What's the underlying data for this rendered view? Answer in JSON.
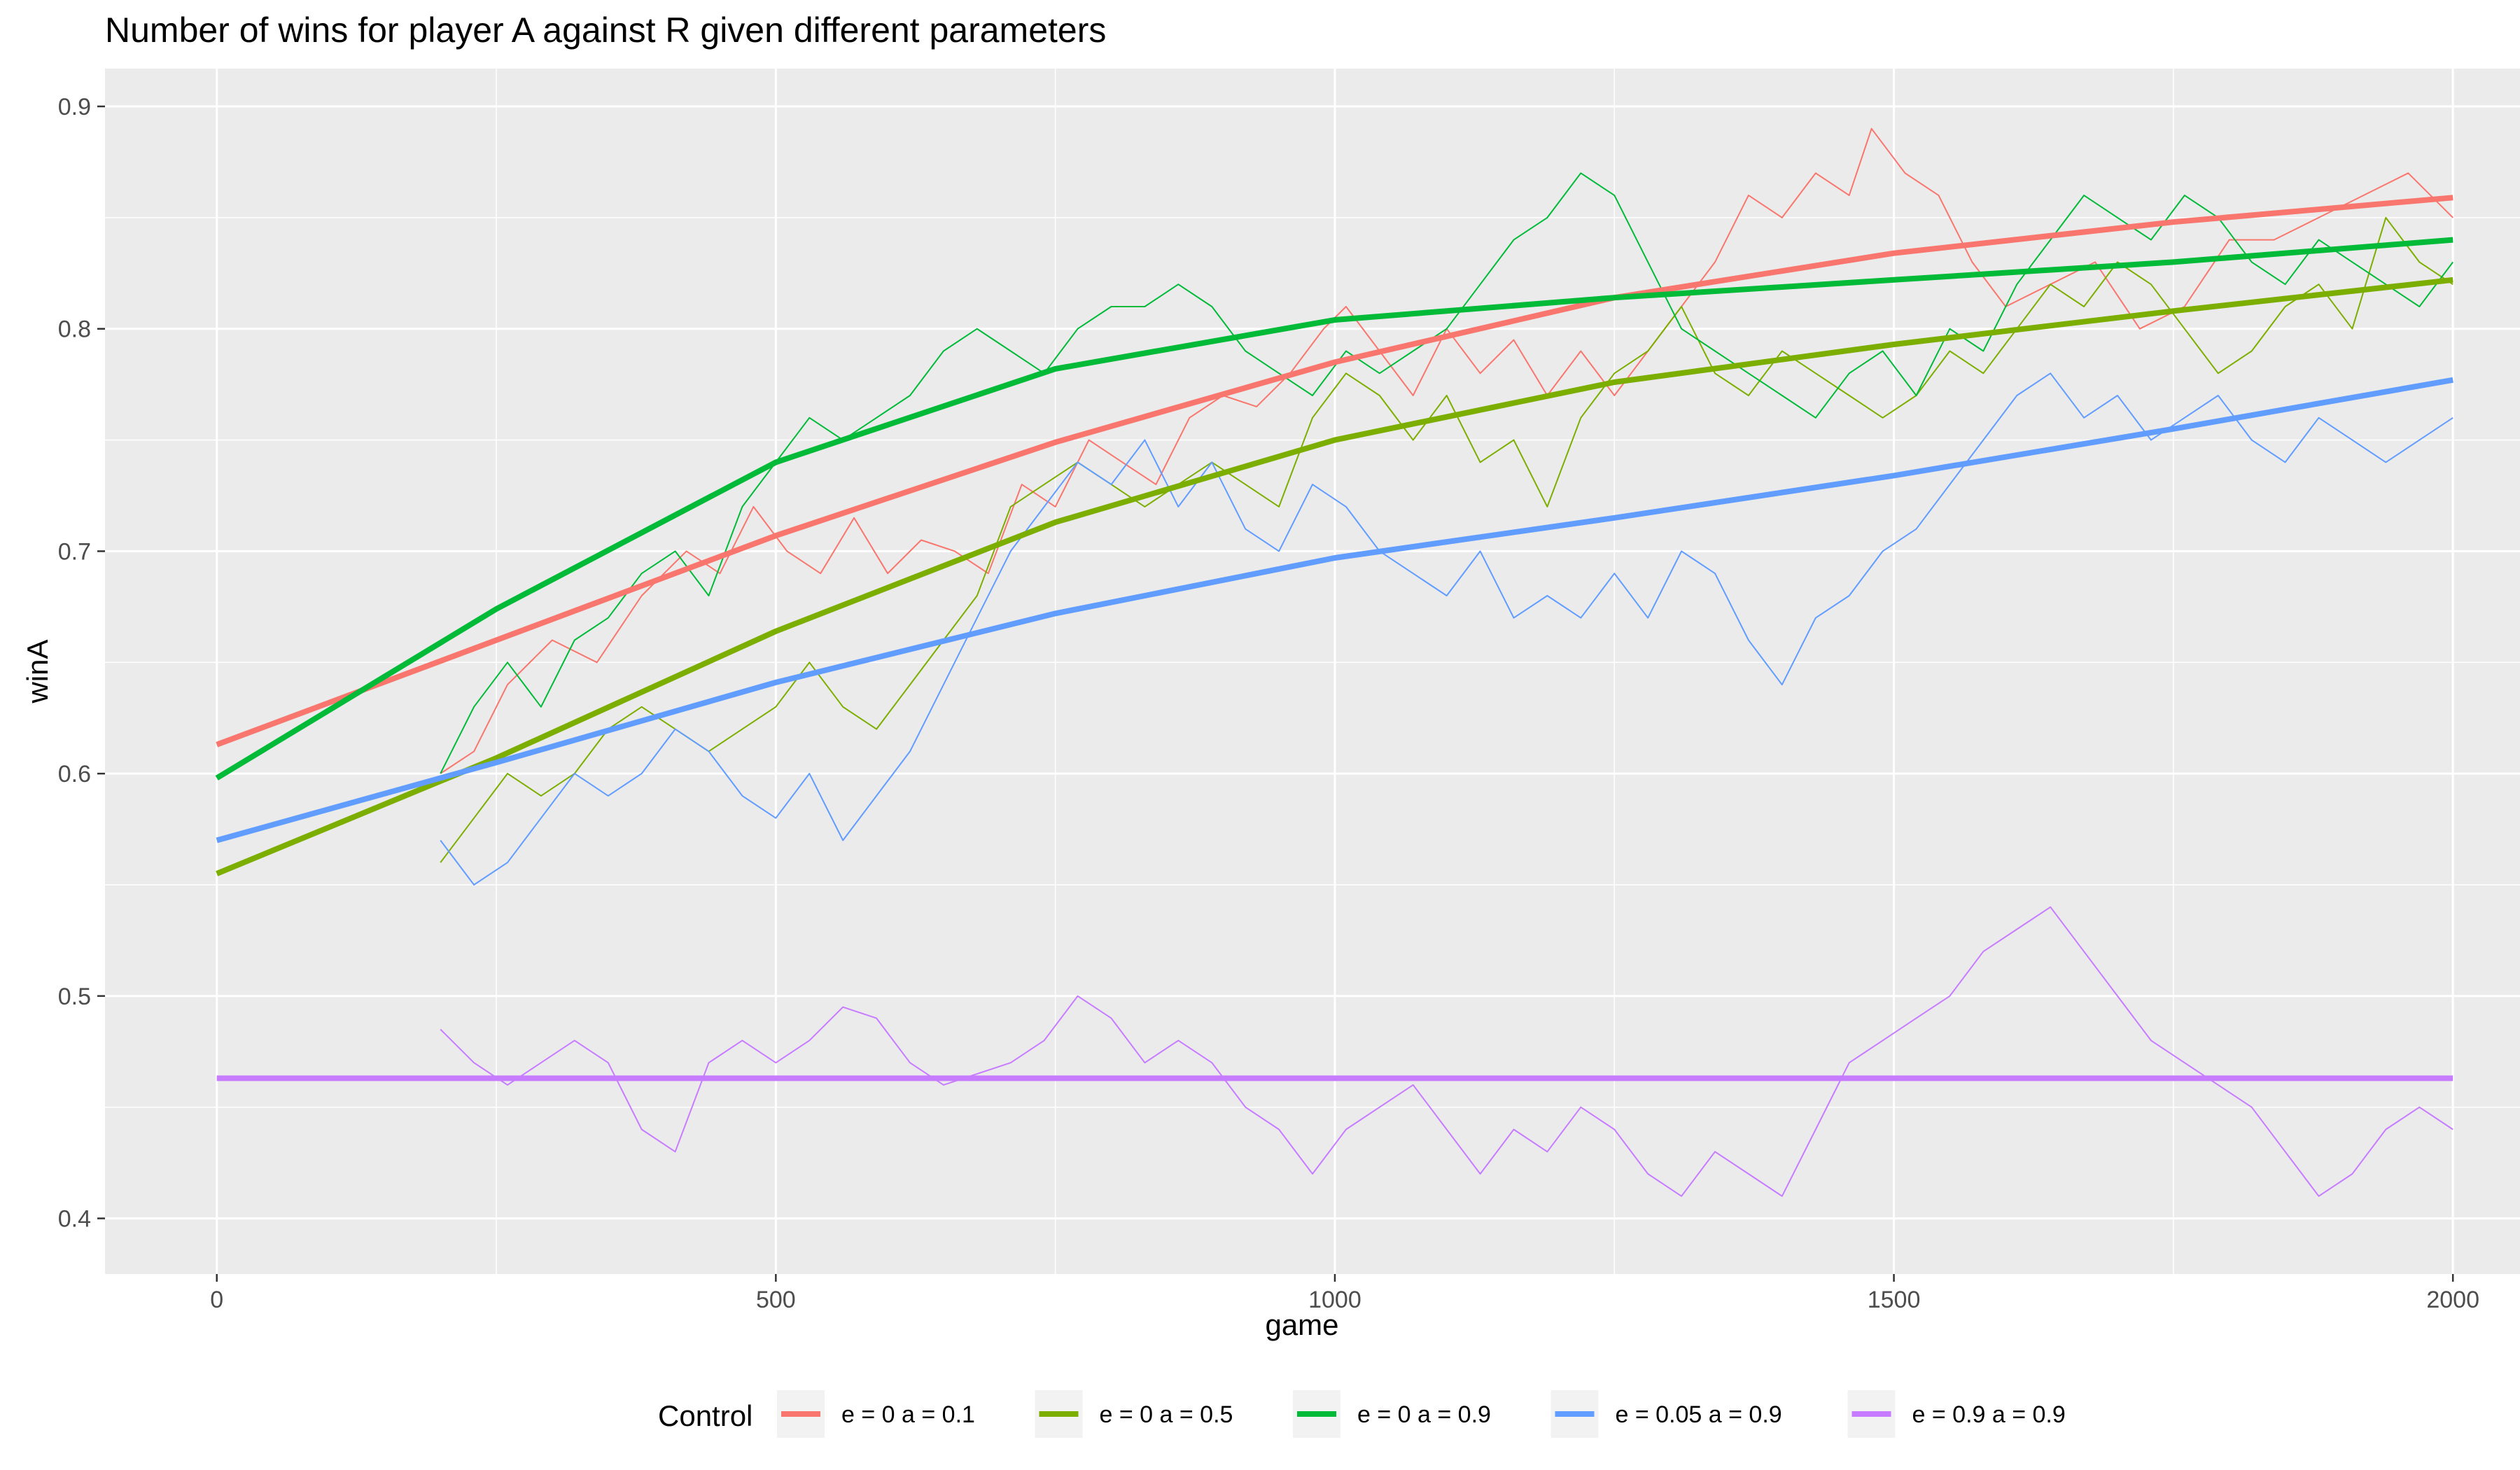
{
  "chart_data": {
    "type": "line",
    "title": "Number of wins for player A against R given different parameters",
    "xlabel": "game",
    "ylabel": "winA",
    "xlim": [
      -100,
      2060
    ],
    "ylim": [
      0.375,
      0.917
    ],
    "xticks": [
      0,
      500,
      1000,
      1500,
      2000
    ],
    "yticks": [
      0.4,
      0.5,
      0.6,
      0.7,
      0.8,
      0.9
    ],
    "xtick_labels": [
      "0",
      "500",
      "1000",
      "1500",
      "2000"
    ],
    "ytick_labels": [
      "0.4",
      "0.5",
      "0.6",
      "0.7",
      "0.8",
      "0.9"
    ],
    "grid": true,
    "legend": {
      "title": "Control",
      "position": "bottom"
    },
    "series": [
      {
        "name": "e = 0 a = 0.1",
        "color": "#F8766D",
        "smooth": {
          "x": [
            0,
            250,
            500,
            750,
            1000,
            1250,
            1500,
            1750,
            2000
          ],
          "y": [
            0.613,
            0.66,
            0.707,
            0.749,
            0.785,
            0.814,
            0.834,
            0.848,
            0.859
          ]
        },
        "raw": {
          "x": [
            200,
            230,
            260,
            300,
            340,
            380,
            420,
            450,
            480,
            510,
            540,
            570,
            600,
            630,
            660,
            690,
            720,
            750,
            780,
            810,
            840,
            870,
            900,
            930,
            960,
            990,
            1010,
            1040,
            1070,
            1100,
            1130,
            1160,
            1190,
            1220,
            1250,
            1280,
            1310,
            1340,
            1370,
            1400,
            1430,
            1460,
            1480,
            1510,
            1540,
            1570,
            1600,
            1640,
            1680,
            1720,
            1760,
            1800,
            1840,
            1880,
            1920,
            1960,
            2000
          ],
          "y": [
            0.6,
            0.61,
            0.64,
            0.66,
            0.65,
            0.68,
            0.7,
            0.69,
            0.72,
            0.7,
            0.69,
            0.715,
            0.69,
            0.705,
            0.7,
            0.69,
            0.73,
            0.72,
            0.75,
            0.74,
            0.73,
            0.76,
            0.77,
            0.765,
            0.78,
            0.8,
            0.81,
            0.79,
            0.77,
            0.8,
            0.78,
            0.795,
            0.77,
            0.79,
            0.77,
            0.79,
            0.81,
            0.83,
            0.86,
            0.85,
            0.87,
            0.86,
            0.89,
            0.87,
            0.86,
            0.83,
            0.81,
            0.82,
            0.83,
            0.8,
            0.81,
            0.84,
            0.84,
            0.85,
            0.86,
            0.87,
            0.85
          ]
        }
      },
      {
        "name": "e = 0 a = 0.5",
        "color": "#7CAE00",
        "smooth": {
          "x": [
            0,
            250,
            500,
            750,
            1000,
            1250,
            1500,
            1750,
            2000
          ],
          "y": [
            0.555,
            0.607,
            0.664,
            0.713,
            0.75,
            0.776,
            0.793,
            0.808,
            0.822
          ]
        },
        "raw": {
          "x": [
            200,
            230,
            260,
            290,
            320,
            350,
            380,
            410,
            440,
            470,
            500,
            530,
            560,
            590,
            620,
            650,
            680,
            710,
            740,
            770,
            800,
            830,
            860,
            890,
            920,
            950,
            980,
            1010,
            1040,
            1070,
            1100,
            1130,
            1160,
            1190,
            1220,
            1250,
            1280,
            1310,
            1340,
            1370,
            1400,
            1430,
            1460,
            1490,
            1520,
            1550,
            1580,
            1610,
            1640,
            1670,
            1700,
            1730,
            1760,
            1790,
            1820,
            1850,
            1880,
            1910,
            1940,
            1970,
            2000
          ],
          "y": [
            0.56,
            0.58,
            0.6,
            0.59,
            0.6,
            0.62,
            0.63,
            0.62,
            0.61,
            0.62,
            0.63,
            0.65,
            0.63,
            0.62,
            0.64,
            0.66,
            0.68,
            0.72,
            0.73,
            0.74,
            0.73,
            0.72,
            0.73,
            0.74,
            0.73,
            0.72,
            0.76,
            0.78,
            0.77,
            0.75,
            0.77,
            0.74,
            0.75,
            0.72,
            0.76,
            0.78,
            0.79,
            0.81,
            0.78,
            0.77,
            0.79,
            0.78,
            0.77,
            0.76,
            0.77,
            0.79,
            0.78,
            0.8,
            0.82,
            0.81,
            0.83,
            0.82,
            0.8,
            0.78,
            0.79,
            0.81,
            0.82,
            0.8,
            0.85,
            0.83,
            0.82
          ]
        }
      },
      {
        "name": "e = 0 a = 0.9",
        "color": "#00BA38",
        "smooth": {
          "x": [
            0,
            250,
            500,
            750,
            1000,
            1250,
            1500,
            1750,
            2000
          ],
          "y": [
            0.598,
            0.674,
            0.74,
            0.782,
            0.804,
            0.814,
            0.822,
            0.83,
            0.84
          ]
        },
        "raw": {
          "x": [
            200,
            230,
            260,
            290,
            320,
            350,
            380,
            410,
            440,
            470,
            500,
            530,
            560,
            590,
            620,
            650,
            680,
            710,
            740,
            770,
            800,
            830,
            860,
            890,
            920,
            950,
            980,
            1010,
            1040,
            1070,
            1100,
            1130,
            1160,
            1190,
            1220,
            1250,
            1280,
            1310,
            1340,
            1370,
            1400,
            1430,
            1460,
            1490,
            1520,
            1550,
            1580,
            1610,
            1640,
            1670,
            1700,
            1730,
            1760,
            1790,
            1820,
            1850,
            1880,
            1910,
            1940,
            1970,
            2000
          ],
          "y": [
            0.6,
            0.63,
            0.65,
            0.63,
            0.66,
            0.67,
            0.69,
            0.7,
            0.68,
            0.72,
            0.74,
            0.76,
            0.75,
            0.76,
            0.77,
            0.79,
            0.8,
            0.79,
            0.78,
            0.8,
            0.81,
            0.81,
            0.82,
            0.81,
            0.79,
            0.78,
            0.77,
            0.79,
            0.78,
            0.79,
            0.8,
            0.82,
            0.84,
            0.85,
            0.87,
            0.86,
            0.83,
            0.8,
            0.79,
            0.78,
            0.77,
            0.76,
            0.78,
            0.79,
            0.77,
            0.8,
            0.79,
            0.82,
            0.84,
            0.86,
            0.85,
            0.84,
            0.86,
            0.85,
            0.83,
            0.82,
            0.84,
            0.83,
            0.82,
            0.81,
            0.83
          ]
        }
      },
      {
        "name": "e = 0.05 a = 0.9",
        "color": "#619CFF",
        "smooth": {
          "x": [
            0,
            250,
            500,
            750,
            1000,
            1250,
            1500,
            1750,
            2000
          ],
          "y": [
            0.57,
            0.605,
            0.641,
            0.672,
            0.697,
            0.715,
            0.734,
            0.755,
            0.777
          ]
        },
        "raw": {
          "x": [
            200,
            230,
            260,
            290,
            320,
            350,
            380,
            410,
            440,
            470,
            500,
            530,
            560,
            590,
            620,
            650,
            680,
            710,
            740,
            770,
            800,
            830,
            860,
            890,
            920,
            950,
            980,
            1010,
            1040,
            1070,
            1100,
            1130,
            1160,
            1190,
            1220,
            1250,
            1280,
            1310,
            1340,
            1370,
            1400,
            1430,
            1460,
            1490,
            1520,
            1550,
            1580,
            1610,
            1640,
            1670,
            1700,
            1730,
            1760,
            1790,
            1820,
            1850,
            1880,
            1910,
            1940,
            1970,
            2000
          ],
          "y": [
            0.57,
            0.55,
            0.56,
            0.58,
            0.6,
            0.59,
            0.6,
            0.62,
            0.61,
            0.59,
            0.58,
            0.6,
            0.57,
            0.59,
            0.61,
            0.64,
            0.67,
            0.7,
            0.72,
            0.74,
            0.73,
            0.75,
            0.72,
            0.74,
            0.71,
            0.7,
            0.73,
            0.72,
            0.7,
            0.69,
            0.68,
            0.7,
            0.67,
            0.68,
            0.67,
            0.69,
            0.67,
            0.7,
            0.69,
            0.66,
            0.64,
            0.67,
            0.68,
            0.7,
            0.71,
            0.73,
            0.75,
            0.77,
            0.78,
            0.76,
            0.77,
            0.75,
            0.76,
            0.77,
            0.75,
            0.74,
            0.76,
            0.75,
            0.74,
            0.75,
            0.76
          ]
        }
      },
      {
        "name": "e = 0.9 a = 0.9",
        "color": "#C77CFF",
        "smooth": {
          "x": [
            0,
            2000
          ],
          "y": [
            0.463,
            0.463
          ]
        },
        "raw": {
          "x": [
            200,
            230,
            260,
            290,
            320,
            350,
            380,
            410,
            440,
            470,
            500,
            530,
            560,
            590,
            620,
            650,
            680,
            710,
            740,
            770,
            800,
            830,
            860,
            890,
            920,
            950,
            980,
            1010,
            1040,
            1070,
            1100,
            1130,
            1160,
            1190,
            1220,
            1250,
            1280,
            1310,
            1340,
            1370,
            1400,
            1430,
            1460,
            1490,
            1520,
            1550,
            1580,
            1610,
            1640,
            1670,
            1700,
            1730,
            1760,
            1790,
            1820,
            1850,
            1880,
            1910,
            1940,
            1970,
            2000
          ],
          "y": [
            0.485,
            0.47,
            0.46,
            0.47,
            0.48,
            0.47,
            0.44,
            0.43,
            0.47,
            0.48,
            0.47,
            0.48,
            0.495,
            0.49,
            0.47,
            0.46,
            0.465,
            0.47,
            0.48,
            0.5,
            0.49,
            0.47,
            0.48,
            0.47,
            0.45,
            0.44,
            0.42,
            0.44,
            0.45,
            0.46,
            0.44,
            0.42,
            0.44,
            0.43,
            0.45,
            0.44,
            0.42,
            0.41,
            0.43,
            0.42,
            0.41,
            0.44,
            0.47,
            0.48,
            0.49,
            0.5,
            0.52,
            0.53,
            0.54,
            0.52,
            0.5,
            0.48,
            0.47,
            0.46,
            0.45,
            0.43,
            0.41,
            0.42,
            0.44,
            0.45,
            0.44
          ]
        }
      }
    ]
  }
}
